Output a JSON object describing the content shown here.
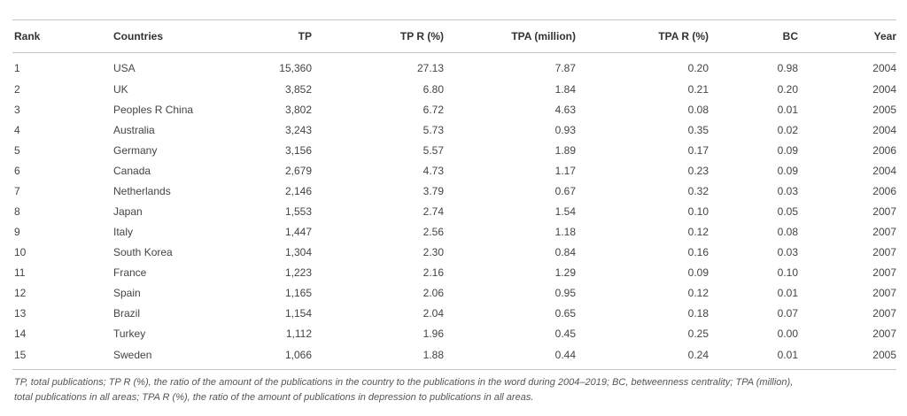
{
  "table": {
    "headers": [
      "Rank",
      "Countries",
      "TP",
      "TP R (%)",
      "TPA (million)",
      "TPA R (%)",
      "BC",
      "Year"
    ],
    "rows": [
      [
        "1",
        "USA",
        "15,360",
        "27.13",
        "7.87",
        "0.20",
        "0.98",
        "2004"
      ],
      [
        "2",
        "UK",
        "3,852",
        "6.80",
        "1.84",
        "0.21",
        "0.20",
        "2004"
      ],
      [
        "3",
        "Peoples R China",
        "3,802",
        "6.72",
        "4.63",
        "0.08",
        "0.01",
        "2005"
      ],
      [
        "4",
        "Australia",
        "3,243",
        "5.73",
        "0.93",
        "0.35",
        "0.02",
        "2004"
      ],
      [
        "5",
        "Germany",
        "3,156",
        "5.57",
        "1.89",
        "0.17",
        "0.09",
        "2006"
      ],
      [
        "6",
        "Canada",
        "2,679",
        "4.73",
        "1.17",
        "0.23",
        "0.09",
        "2004"
      ],
      [
        "7",
        "Netherlands",
        "2,146",
        "3.79",
        "0.67",
        "0.32",
        "0.03",
        "2006"
      ],
      [
        "8",
        "Japan",
        "1,553",
        "2.74",
        "1.54",
        "0.10",
        "0.05",
        "2007"
      ],
      [
        "9",
        "Italy",
        "1,447",
        "2.56",
        "1.18",
        "0.12",
        "0.08",
        "2007"
      ],
      [
        "10",
        "South Korea",
        "1,304",
        "2.30",
        "0.84",
        "0.16",
        "0.03",
        "2007"
      ],
      [
        "11",
        "France",
        "1,223",
        "2.16",
        "1.29",
        "0.09",
        "0.10",
        "2007"
      ],
      [
        "12",
        "Spain",
        "1,165",
        "2.06",
        "0.95",
        "0.12",
        "0.01",
        "2007"
      ],
      [
        "13",
        "Brazil",
        "1,154",
        "2.04",
        "0.65",
        "0.18",
        "0.07",
        "2007"
      ],
      [
        "14",
        "Turkey",
        "1,112",
        "1.96",
        "0.45",
        "0.25",
        "0.00",
        "2007"
      ],
      [
        "15",
        "Sweden",
        "1,066",
        "1.88",
        "0.44",
        "0.24",
        "0.01",
        "2005"
      ]
    ]
  },
  "footnote": {
    "line1": "TP, total publications; TP R (%), the ratio of the amount of the publications in the country to the publications in the word during 2004–2019; BC, betweenness centrality; TPA (million),",
    "line2": "total publications in all areas; TPA R (%), the ratio of the amount of publications in depression to publications in all areas."
  }
}
